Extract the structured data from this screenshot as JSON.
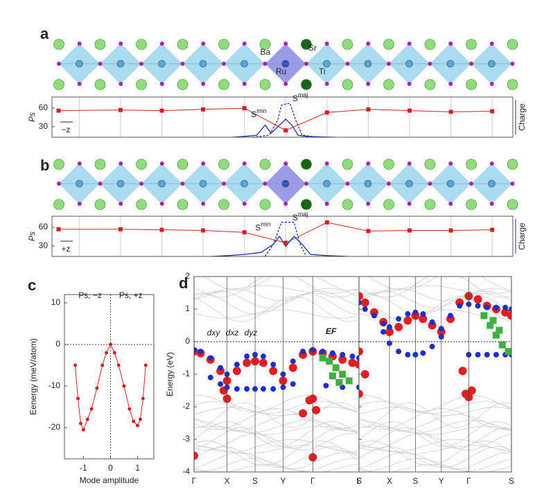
{
  "structure_labels": [
    "Ba",
    "Sr",
    "Ru",
    "Ti"
  ],
  "chart_data": [
    {
      "type": "line",
      "label": "a",
      "ylabel": "Ps",
      "y2label": "Charge",
      "direction": "−z",
      "annotations": [
        {
          "text": "S",
          "sup": "min",
          "x": 4.35,
          "y": 0.55
        },
        {
          "text": "S",
          "sup": "maj",
          "x": 5.35,
          "y": 0.95
        }
      ],
      "xlim": [
        -0.66,
        10.5
      ],
      "ylim": [
        13,
        78
      ],
      "yticks": [
        30,
        60
      ],
      "y2lim": [
        0,
        1
      ],
      "series": [
        {
          "name": "Ps",
          "color": "#d42020",
          "x": [
            -0.5,
            1,
            2,
            3,
            4,
            5,
            6,
            7,
            8,
            9,
            10
          ],
          "values": [
            56,
            57,
            56,
            58,
            60,
            24,
            53,
            58,
            56,
            54,
            55
          ]
        },
        {
          "name": "Smaj",
          "color": "#1c2fa8",
          "axis": "y2",
          "x": [
            3.7,
            4.0,
            4.3,
            4.5,
            4.65,
            4.8,
            5.0,
            5.15,
            5.3,
            5.5,
            5.8,
            6.2
          ],
          "values": [
            0,
            0.02,
            0.05,
            0.3,
            0.1,
            0.25,
            0.45,
            0.3,
            0.05,
            0.02,
            0.01,
            0
          ]
        },
        {
          "name": "Smin",
          "color": "#1c2fa8",
          "axis": "y2",
          "dash": true,
          "x": [
            4.2,
            4.6,
            4.8,
            4.9,
            5.1,
            5.25,
            5.4,
            5.8
          ],
          "values": [
            0,
            0.05,
            0.4,
            0.8,
            0.85,
            0.4,
            0.05,
            0
          ]
        }
      ]
    },
    {
      "type": "line",
      "label": "b",
      "ylabel": "Ps",
      "y2label": "Charge",
      "direction": "+z",
      "annotations": [
        {
          "text": "S",
          "sup": "min",
          "x": 4.45,
          "y": 0.7
        },
        {
          "text": "S",
          "sup": "maj",
          "x": 5.35,
          "y": 0.95
        }
      ],
      "xlim": [
        -0.66,
        10.5
      ],
      "ylim": [
        13,
        78
      ],
      "yticks": [
        30,
        60
      ],
      "y2lim": [
        0,
        1
      ],
      "series": [
        {
          "name": "Ps",
          "color": "#d42020",
          "x": [
            -0.5,
            1,
            2,
            3,
            4,
            5,
            6,
            7,
            8,
            9,
            10
          ],
          "values": [
            57,
            57,
            56,
            55,
            52,
            35,
            68,
            54,
            55,
            55,
            56
          ]
        },
        {
          "name": "Smaj",
          "color": "#1c2fa8",
          "axis": "y2",
          "x": [
            3.2,
            3.6,
            4.0,
            4.4,
            4.7,
            4.85,
            5.0,
            5.2,
            5.4,
            5.6,
            6.0,
            6.5
          ],
          "values": [
            0,
            0.02,
            0.05,
            0.1,
            0.3,
            0.5,
            0.25,
            0.5,
            0.3,
            0.05,
            0.02,
            0
          ]
        },
        {
          "name": "Smin",
          "color": "#1c2fa8",
          "axis": "y2",
          "dash": true,
          "x": [
            4.5,
            4.7,
            4.9,
            5.2,
            5.35,
            5.5
          ],
          "values": [
            0,
            0.3,
            0.85,
            0.85,
            0.3,
            0
          ]
        }
      ]
    },
    {
      "type": "line",
      "label": "c",
      "xlabel": "Mode amplitude",
      "ylabel": "Eenergy (meV/atom)",
      "annotations": [
        {
          "text": "Ps, −z",
          "x": -0.75,
          "y": 0
        },
        {
          "text": "Ps, +z",
          "x": 0.75,
          "y": 0
        }
      ],
      "reference_lines": {
        "x": 0,
        "y": 0
      },
      "xlim": [
        -1.7,
        1.6
      ],
      "ylim": [
        -27.5,
        12
      ],
      "xticks": [
        -1,
        0,
        1
      ],
      "yticks": [
        -20,
        -10,
        0,
        10
      ],
      "series": [
        {
          "name": "Energy",
          "color": "#cc2222",
          "marker": true,
          "x": [
            -1.3,
            -1.2,
            -1.1,
            -1,
            -0.85,
            -0.7,
            -0.5,
            -0.3,
            -0.15,
            0,
            0.15,
            0.3,
            0.5,
            0.7,
            0.85,
            1,
            1.1,
            1.2,
            1.3
          ],
          "values": [
            -5,
            -13,
            -19,
            -20.5,
            -18,
            -15.5,
            -10.5,
            -5,
            -2,
            0,
            -2,
            -5,
            -10,
            -15.5,
            -18.5,
            -19.5,
            -18,
            -13,
            -5
          ]
        }
      ]
    },
    {
      "type": "scatter",
      "label": "d",
      "ylabel": "Energy (eV)",
      "fermi_label": "EF",
      "fermi_level": 0,
      "xlim": [
        0,
        5
      ],
      "ylim": [
        -4,
        2
      ],
      "xticks": [
        {
          "value": 0,
          "label": "Γ"
        },
        {
          "value": 1,
          "label": "X"
        },
        {
          "value": 1.85,
          "label": "S"
        },
        {
          "value": 2.7,
          "label": "Y"
        },
        {
          "value": 3.6,
          "label": "Γ"
        },
        {
          "value": 5,
          "label": "S"
        }
      ],
      "yticks": [
        -4,
        -3,
        -2,
        -1,
        0,
        1,
        2
      ],
      "series": [
        {
          "name": "dxy",
          "color": "#e02020",
          "x": [
            0,
            0.2,
            0.5,
            0.8,
            1.0,
            1.3,
            1.6,
            1.85,
            2.1,
            2.4,
            2.7,
            3.0,
            3.3,
            3.6,
            3.9,
            4.2,
            4.5,
            4.8,
            5.0,
            0.9,
            1.0,
            3.5,
            3.6,
            3.7,
            0,
            3.6,
            3.3
          ],
          "values": [
            -0.3,
            -0.35,
            -0.55,
            -0.9,
            -1.2,
            -0.9,
            -0.65,
            -0.6,
            -0.65,
            -0.9,
            -1.2,
            -0.8,
            -0.4,
            -0.3,
            -0.35,
            -0.45,
            -0.55,
            -0.65,
            -0.7,
            -1.5,
            -1.75,
            -1.8,
            -1.75,
            -2.1,
            -3.5,
            -3.55,
            -2.2
          ]
        },
        {
          "name": "dxz",
          "color": "#1c2fc8",
          "x": [
            0,
            0.2,
            0.5,
            0.8,
            1.0,
            1.3,
            1.6,
            1.85,
            2.1,
            2.4,
            2.7,
            3.0,
            3.3,
            3.6,
            3.9,
            4.2,
            4.5,
            4.8,
            5.0,
            0.5,
            0.8,
            1.0,
            1.3,
            1.6,
            1.85,
            2.1,
            2.4,
            2.7,
            3.0,
            4.0,
            4.5,
            5.0
          ],
          "values": [
            -0.25,
            -0.3,
            -0.5,
            -0.8,
            -1.0,
            -0.7,
            -0.45,
            -0.4,
            -0.45,
            -0.7,
            -1.0,
            -0.6,
            -0.3,
            -0.25,
            -0.3,
            -0.35,
            -0.4,
            -0.45,
            -0.5,
            -1.1,
            -1.3,
            -1.4,
            -1.45,
            -1.45,
            -1.45,
            -1.45,
            -1.45,
            -1.4,
            -1.3,
            -1.35,
            -1.4,
            -1.4
          ]
        },
        {
          "name": "dyz",
          "color": "#40b040",
          "x": [
            3.9,
            4.1,
            4.3,
            4.5,
            4.7,
            4.2,
            4.4
          ],
          "values": [
            -0.5,
            -0.6,
            -0.8,
            -1.0,
            -1.2,
            -1.05,
            -1.25
          ]
        }
      ]
    },
    {
      "type": "scatter",
      "xlim": [
        0,
        5
      ],
      "ylim": [
        -4,
        2
      ],
      "fermi_level": 0,
      "xticks": [
        {
          "value": 0,
          "label": "Γ"
        },
        {
          "value": 1,
          "label": "X"
        },
        {
          "value": 1.85,
          "label": "S"
        },
        {
          "value": 2.7,
          "label": "Y"
        },
        {
          "value": 3.6,
          "label": "Γ"
        },
        {
          "value": 5,
          "label": "S"
        }
      ],
      "yticks": [
        -4,
        -3,
        -2,
        -1,
        0,
        1,
        2
      ],
      "series": [
        {
          "name": "dxy",
          "color": "#e02020",
          "x": [
            0,
            0.2,
            0.5,
            0.8,
            1.0,
            1.3,
            1.6,
            1.85,
            2.1,
            2.4,
            2.7,
            3.0,
            3.3,
            3.6,
            3.9,
            4.2,
            4.5,
            4.8,
            5.0,
            0,
            0.2,
            3.5,
            3.6,
            3.7,
            3.4,
            0
          ],
          "values": [
            1.4,
            1.2,
            0.9,
            0.6,
            0.3,
            0.45,
            0.65,
            0.8,
            0.7,
            0.5,
            0.3,
            0.7,
            1.2,
            1.4,
            1.3,
            1.1,
            1.0,
            0.9,
            0.8,
            -0.3,
            -1.0,
            -1.6,
            -1.7,
            -1.5,
            -0.9,
            -1.6
          ]
        },
        {
          "name": "dxz",
          "color": "#1c2fc8",
          "x": [
            0,
            0.2,
            0.5,
            0.8,
            1.0,
            1.3,
            1.6,
            1.85,
            2.1,
            2.4,
            2.7,
            3.0,
            3.3,
            3.6,
            3.9,
            4.2,
            4.5,
            4.8,
            5.0,
            0.8,
            1.0,
            1.3,
            1.6,
            1.85,
            2.1,
            2.4,
            2.7,
            3.6,
            3.9,
            4.2,
            4.5,
            4.8,
            5.0
          ],
          "values": [
            1.2,
            1.0,
            0.8,
            0.55,
            0.45,
            0.7,
            0.85,
            0.9,
            0.85,
            0.6,
            0.4,
            0.8,
            1.1,
            1.15,
            1.1,
            1.05,
            1.05,
            1.05,
            1.0,
            0.3,
            -0.05,
            -0.3,
            -0.4,
            -0.4,
            -0.35,
            -0.15,
            0.15,
            -0.4,
            -0.4,
            -0.4,
            -0.4,
            -0.4,
            -0.4
          ]
        },
        {
          "name": "dyz",
          "color": "#40b040",
          "x": [
            4.1,
            4.3,
            4.5,
            4.7,
            4.9,
            4.4,
            4.6
          ],
          "values": [
            0.8,
            0.5,
            0.2,
            -0.1,
            -0.3,
            0.65,
            0.35
          ]
        }
      ]
    }
  ]
}
